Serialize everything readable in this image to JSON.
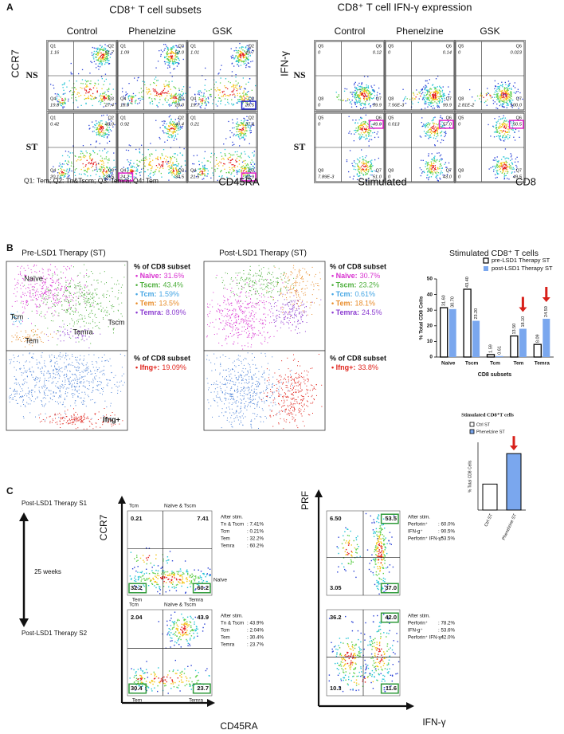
{
  "panel_a": {
    "label": "A",
    "subsets": {
      "title": "CD8⁺ T cell subsets",
      "columns": [
        "Control",
        "Phenelzine",
        "GSK"
      ],
      "rows": [
        "NS",
        "ST"
      ],
      "y_axis": "CCR7",
      "x_axis": "CD45RA",
      "footnote": "Q1: Tem; Q2: Tn&Tscm; Q3: Temra; Q4: Tem",
      "plots": [
        {
          "quadrants": [
            {
              "name": "Q1",
              "value": "1.16"
            },
            {
              "name": "Q2",
              "value": "51.7"
            },
            {
              "name": "Q4",
              "value": "19.8"
            },
            {
              "name": "Q3",
              "value": "27.4"
            }
          ]
        },
        {
          "quadrants": [
            {
              "name": "Q1",
              "value": "1.09"
            },
            {
              "name": "Q2",
              "value": "52.0"
            },
            {
              "name": "Q4",
              "value": "18.9"
            },
            {
              "name": "Q3",
              "value": "28.0"
            }
          ]
        },
        {
          "quadrants": [
            {
              "name": "Q1",
              "value": "1.01"
            },
            {
              "name": "Q2",
              "value": "49.7"
            },
            {
              "name": "Q4",
              "value": "19.7"
            },
            {
              "name": "Q3",
              "value": "29.5",
              "box": "#1f22c8"
            }
          ]
        },
        {
          "quadrants": [
            {
              "name": "Q1",
              "value": "0.42"
            },
            {
              "name": "Q2",
              "value": "46.0"
            },
            {
              "name": "Q4",
              "value": "20.1"
            },
            {
              "name": "Q3",
              "value": "33.5"
            }
          ]
        },
        {
          "quadrants": [
            {
              "name": "Q1",
              "value": "0.92"
            },
            {
              "name": "Q2",
              "value": "40.4"
            },
            {
              "name": "Q4",
              "value": "24.2",
              "box": "#e020c8"
            },
            {
              "name": "Q3",
              "value": "34.5"
            }
          ]
        },
        {
          "quadrants": [
            {
              "name": "Q1",
              "value": "0.21"
            },
            {
              "name": "Q2",
              "value": "37.4"
            },
            {
              "name": "Q4",
              "value": "21.5"
            },
            {
              "name": "Q3",
              "value": "40.9",
              "box": "#e020c8"
            }
          ]
        }
      ]
    },
    "ifn": {
      "title": "CD8⁺ T cell IFN-γ expression",
      "columns": [
        "Control",
        "Phenelzine",
        "GSK"
      ],
      "rows": [
        "NS",
        "ST"
      ],
      "y_axis": "IFN-γ",
      "x_caption": "Stimulated",
      "x_axis": "CD8",
      "plots": [
        {
          "quadrants": [
            {
              "name": "Q5",
              "value": "0"
            },
            {
              "name": "Q6",
              "value": "0.12"
            },
            {
              "name": "Q8",
              "value": "0"
            },
            {
              "name": "Q7",
              "value": "99.9"
            }
          ]
        },
        {
          "quadrants": [
            {
              "name": "Q5",
              "value": "0"
            },
            {
              "name": "Q6",
              "value": "0.14"
            },
            {
              "name": "Q8",
              "value": "7.56E-3"
            },
            {
              "name": "Q7",
              "value": "99.9"
            }
          ]
        },
        {
          "quadrants": [
            {
              "name": "Q5",
              "value": "0"
            },
            {
              "name": "Q6",
              "value": "0.023"
            },
            {
              "name": "Q8",
              "value": "2.81E-2"
            },
            {
              "name": "Q7",
              "value": "100.0"
            }
          ]
        },
        {
          "quadrants": [
            {
              "name": "Q5",
              "value": "0"
            },
            {
              "name": "Q6",
              "value": "49.0",
              "box": "#e020c8"
            },
            {
              "name": "Q8",
              "value": "7.89E-3"
            },
            {
              "name": "Q7",
              "value": "51.0"
            }
          ]
        },
        {
          "quadrants": [
            {
              "name": "Q5",
              "value": "0.013"
            },
            {
              "name": "Q6",
              "value": "57.0",
              "box": "#e020c8"
            },
            {
              "name": "Q8",
              "value": "0"
            },
            {
              "name": "Q7",
              "value": "43.0"
            }
          ]
        },
        {
          "quadrants": [
            {
              "name": "Q5",
              "value": "0"
            },
            {
              "name": "Q6",
              "value": "50.5",
              "box": "#e020c8"
            },
            {
              "name": "Q8",
              "value": "0"
            },
            {
              "name": "Q7",
              "value": "49.5"
            }
          ]
        }
      ]
    }
  },
  "panel_b": {
    "label": "B",
    "pre": {
      "title": "Pre-LSD1 Therapy (ST)",
      "legend_title": "% of CD8 subset",
      "subsets": [
        {
          "name": "• Naïve:",
          "value": "31.6%",
          "color": "#d830d0"
        },
        {
          "name": "• Tscm:",
          "value": "43.4%",
          "color": "#4daf3c"
        },
        {
          "name": "• Tcm:",
          "value": "1.59%",
          "color": "#45a6e4"
        },
        {
          "name": "• Tem:",
          "value": "13.5%",
          "color": "#e88d2c"
        },
        {
          "name": "• Temra:",
          "value": "8.09%",
          "color": "#8b3bd0"
        }
      ],
      "cluster_labels": {
        "naive": "Naïve",
        "tcm": "Tcm",
        "tscm": "Tscm",
        "tem": "Tem",
        "temra": "Temra"
      },
      "ifng_legend_title": "% of CD8 subset",
      "ifng": {
        "name": "• Ifng+:",
        "value": "19.09%",
        "color": "#e0241c"
      },
      "ifng_label": "Ifng+"
    },
    "post": {
      "title": "Post-LSD1 Therapy (ST)",
      "legend_title": "% of CD8 subset",
      "subsets": [
        {
          "name": "• Naïve:",
          "value": "30.7%",
          "color": "#d830d0"
        },
        {
          "name": "• Tscm:",
          "value": "23.2%",
          "color": "#4daf3c"
        },
        {
          "name": "• Tcm:",
          "value": "0.61%",
          "color": "#45a6e4"
        },
        {
          "name": "• Tem:",
          "value": "18.1%",
          "color": "#e88d2c"
        },
        {
          "name": "• Temra:",
          "value": "24.5%",
          "color": "#8b3bd0"
        }
      ],
      "ifng_legend_title": "% of CD8 subset",
      "ifng": {
        "name": "• Ifng+:",
        "value": "33.8%",
        "color": "#e0241c"
      }
    }
  },
  "chart_data": [
    {
      "type": "bar",
      "title": "Stimulated CD8⁺ T cells",
      "x_label": "CD8 subsets",
      "y_label": "% Total CD8 Cells",
      "categories": [
        "Naive",
        "Tscm",
        "Tcm",
        "Tem",
        "Temra"
      ],
      "series": [
        {
          "name": "pre-LSD1 Therapy ST",
          "color": "#ffffff",
          "edgecolor": "#000000",
          "values": [
            31.6,
            43.4,
            1.59,
            13.5,
            8.09
          ],
          "value_labels": [
            "31.60",
            "43.40",
            "1.59",
            "13.50",
            "8.09"
          ]
        },
        {
          "name": "post-LSD1 Therapy ST",
          "color": "#7aa7ee",
          "values": [
            30.7,
            23.2,
            0.61,
            18.1,
            24.5
          ],
          "value_labels": [
            "30.70",
            "23.20",
            "0.61",
            "18.10",
            "24.50"
          ]
        }
      ],
      "ylim": [
        0,
        50
      ],
      "yticks": [
        0,
        10,
        20,
        30,
        40,
        50
      ]
    },
    {
      "type": "bar",
      "title": "Stimulated CD8⁺T cells",
      "y_label": "% Total CD8 Cells",
      "categories": [
        "Ctrl ST",
        "Phenelzine ST"
      ],
      "values": [
        23,
        50
      ],
      "colors": [
        "#ffffff",
        "#7aa7ee"
      ],
      "edgecolor": "#000000",
      "ylim": [
        0,
        60
      ]
    }
  ],
  "panel_c": {
    "label": "C",
    "timeline": {
      "start": "Post-LSD1 Therapy S1",
      "interval": "25 weeks",
      "end": "Post-LSD1 Therapy S2"
    },
    "subsets": {
      "y_axis": "CCR7",
      "x_axis": "CD45RA",
      "plots": [
        {
          "gates": {
            "tcm": "Tcm",
            "naive_tscm": "Naïve & Tscm",
            "naive": "Naïve",
            "tem": "Tem",
            "temra": "Temra"
          },
          "values": [
            {
              "value": "0.21"
            },
            {
              "value": "7.41"
            },
            {
              "value": "32.2",
              "box": "#2f9a3a"
            },
            {
              "value": "60.2",
              "box": "#2f9a3a"
            }
          ],
          "notes_title": "After stim.",
          "notes": [
            [
              "Tn & Tscm",
              ": 7.41%"
            ],
            [
              "Tcm",
              ": 0.21%"
            ],
            [
              "Tem",
              ": 32.2%"
            ],
            [
              "Temra",
              ": 60.2%"
            ]
          ]
        },
        {
          "gates": {
            "tcm": "Tcm",
            "naive_tscm": "Naïve & Tscm",
            "tem": "Tem",
            "temra": "Temra"
          },
          "values": [
            {
              "value": "2.04"
            },
            {
              "value": "43.9"
            },
            {
              "value": "30.4",
              "box": "#2f9a3a"
            },
            {
              "value": "23.7",
              "box": "#2f9a3a"
            }
          ],
          "notes_title": "After stim.",
          "notes": [
            [
              "Tn & Tscm",
              ": 43.9%"
            ],
            [
              "Tcm",
              ": 2.04%"
            ],
            [
              "Tem",
              ": 30.4%"
            ],
            [
              "Temra",
              ": 23.7%"
            ]
          ]
        }
      ]
    },
    "prf": {
      "y_axis": "PRF",
      "x_axis": "IFN-γ",
      "plots": [
        {
          "values": [
            {
              "value": "6.50"
            },
            {
              "value": "53.5",
              "box": "#2f9a3a"
            },
            {
              "value": "3.05"
            },
            {
              "value": "37.0",
              "box": "#2f9a3a"
            }
          ],
          "notes_title": "After stim.",
          "notes": [
            [
              "Perforin⁺",
              ": 60.0%"
            ],
            [
              "IFN-g⁺",
              ": 90.5%"
            ],
            [
              "Perforin⁺ IFN-γ⁺",
              ": 53.5%"
            ]
          ]
        },
        {
          "values": [
            {
              "value": "36.2"
            },
            {
              "value": "42.0",
              "box": "#2f9a3a"
            },
            {
              "value": "10.3"
            },
            {
              "value": "11.6",
              "box": "#2f9a3a"
            }
          ],
          "notes_title": "After stim.",
          "notes": [
            [
              "Perforin⁺",
              ": 78.2%"
            ],
            [
              "IFN-g⁺",
              ": 53.6%"
            ],
            [
              "Perforin⁺ IFN-γ⁺",
              ": 42.0%"
            ]
          ]
        }
      ]
    }
  }
}
